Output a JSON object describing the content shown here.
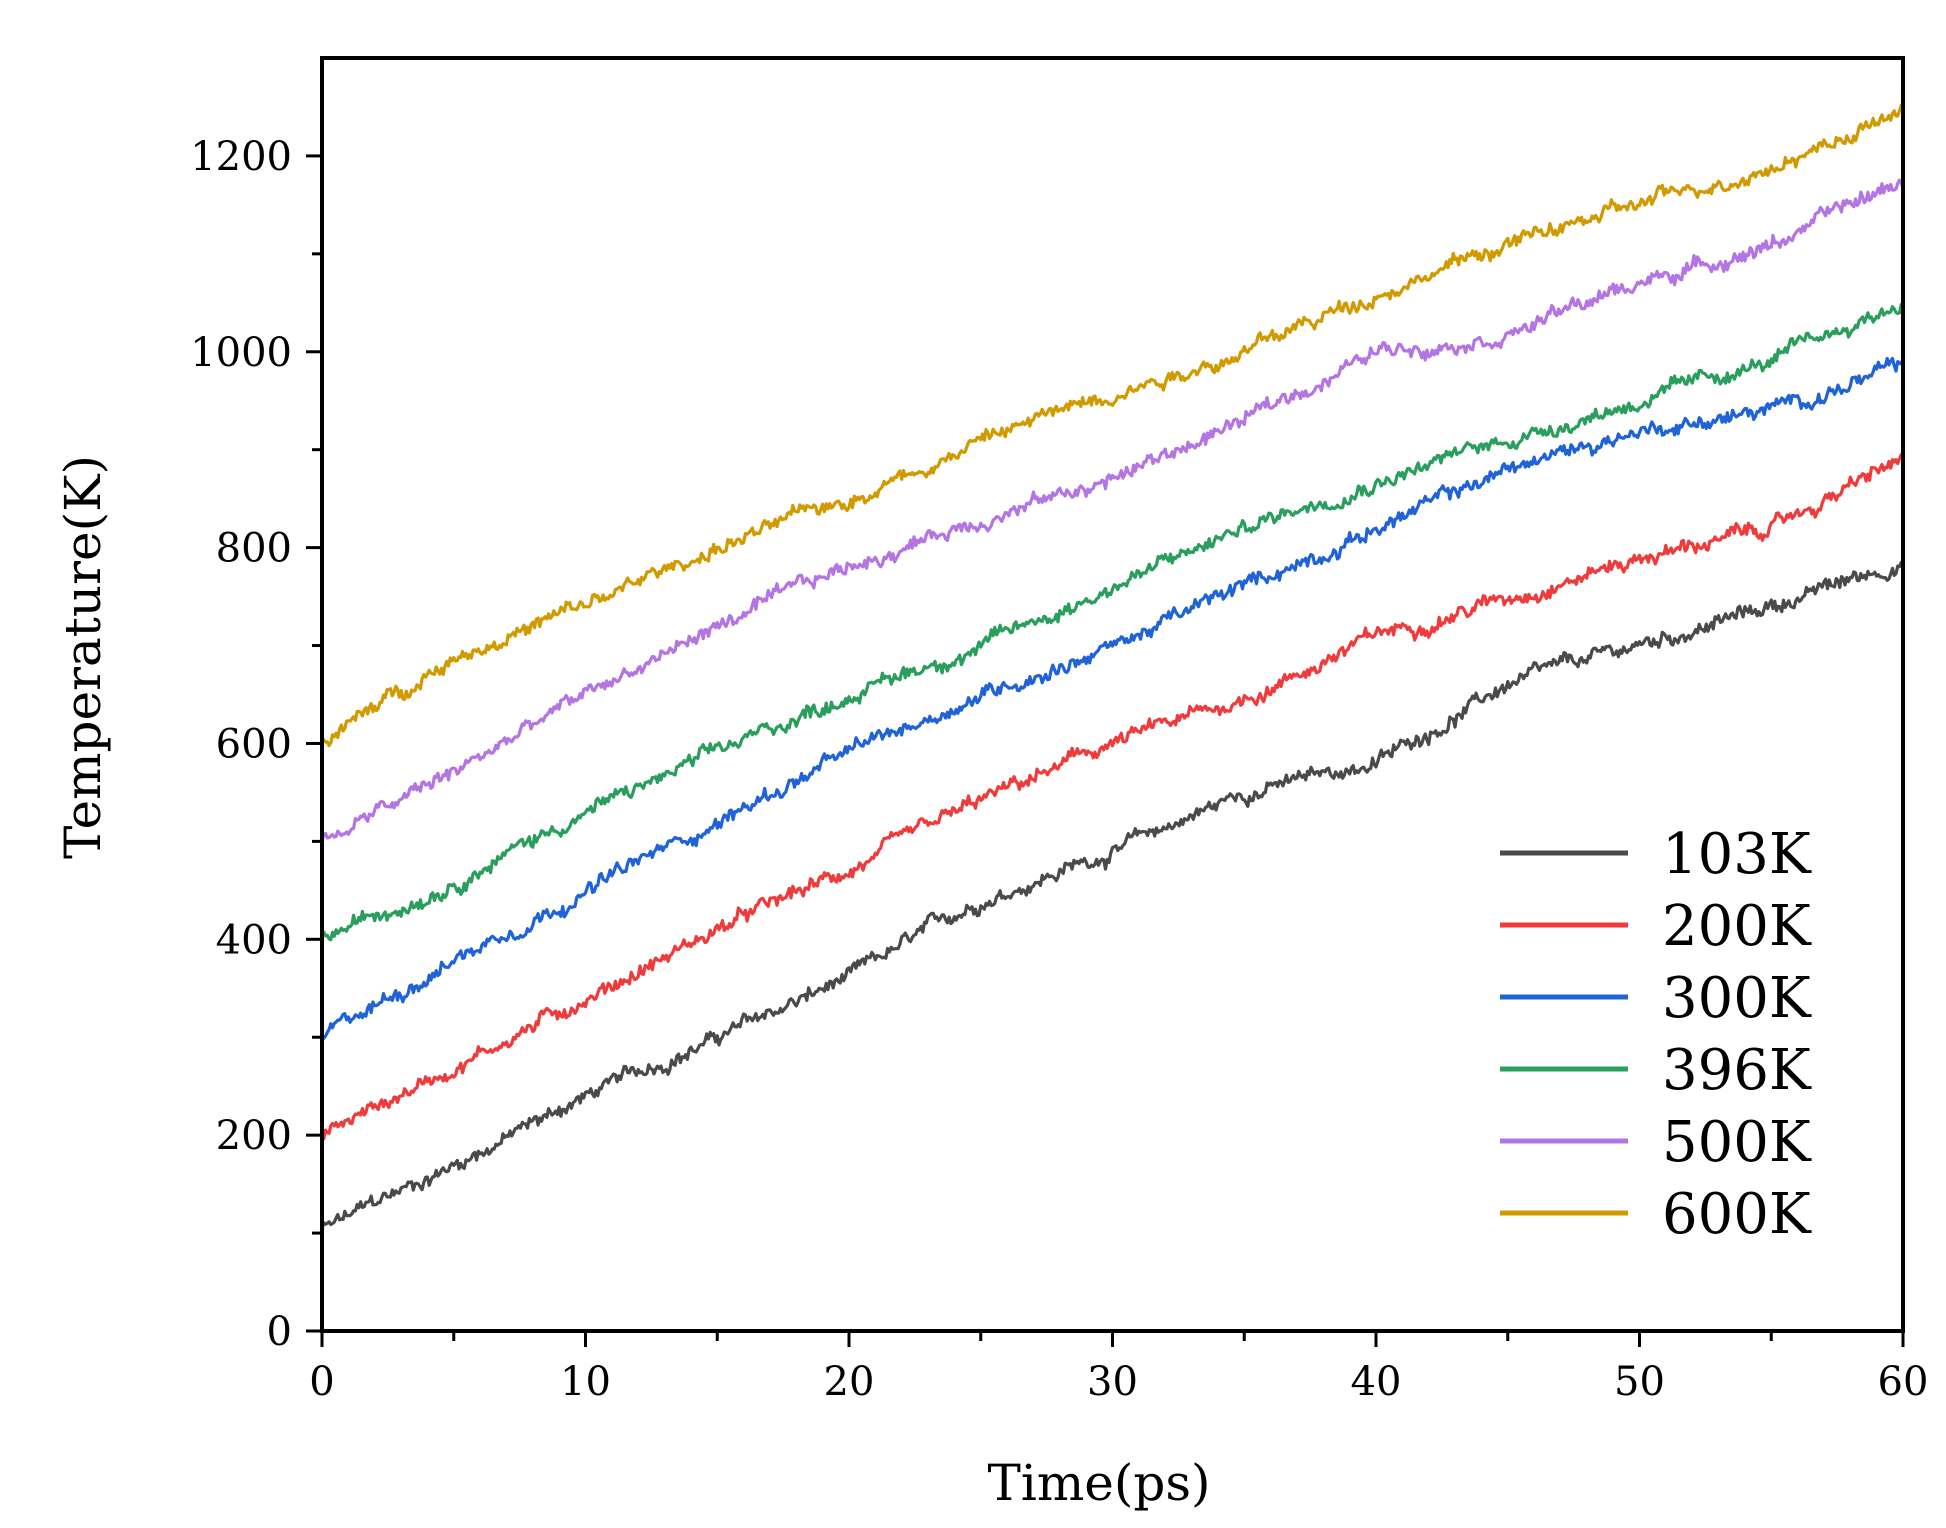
{
  "chart_data": {
    "type": "line",
    "title": "",
    "xlabel": "Time(ps)",
    "ylabel": "Temperature(K)",
    "xlim": [
      0,
      60
    ],
    "ylim": [
      0,
      1300
    ],
    "xticks": [
      0,
      10,
      20,
      30,
      40,
      50,
      60
    ],
    "xtick_labels": [
      "0",
      "10",
      "20",
      "30",
      "40",
      "50",
      "60"
    ],
    "yticks": [
      0,
      200,
      400,
      600,
      800,
      1000,
      1200
    ],
    "ytick_labels": [
      "0",
      "200",
      "400",
      "600",
      "800",
      "1000",
      "1200"
    ],
    "grid": false,
    "legend_position": "lower-right",
    "x": [
      0,
      5,
      10,
      15,
      20,
      25,
      30,
      35,
      40,
      45,
      50,
      55,
      60
    ],
    "series": [
      {
        "name": "103K",
        "color": "#4a4a4a",
        "values": [
          103,
          170,
          240,
          300,
          360,
          440,
          490,
          550,
          580,
          660,
          700,
          740,
          785
        ]
      },
      {
        "name": "200K",
        "color": "#ef3b3b",
        "values": [
          200,
          270,
          340,
          410,
          470,
          540,
          600,
          645,
          710,
          750,
          790,
          820,
          890
        ]
      },
      {
        "name": "300K",
        "color": "#1f63d6",
        "values": [
          300,
          380,
          450,
          520,
          590,
          650,
          700,
          760,
          820,
          880,
          920,
          940,
          985
        ]
      },
      {
        "name": "396K",
        "color": "#2a9e5c",
        "values": [
          400,
          460,
          530,
          590,
          650,
          700,
          760,
          820,
          870,
          910,
          950,
          990,
          1050
        ]
      },
      {
        "name": "500K",
        "color": "#b474e3",
        "values": [
          500,
          570,
          650,
          720,
          780,
          830,
          870,
          930,
          1000,
          1020,
          1070,
          1110,
          1175
        ]
      },
      {
        "name": "600K",
        "color": "#d19a00",
        "values": [
          600,
          690,
          740,
          800,
          850,
          910,
          960,
          1000,
          1060,
          1110,
          1150,
          1190,
          1245
        ]
      }
    ]
  }
}
